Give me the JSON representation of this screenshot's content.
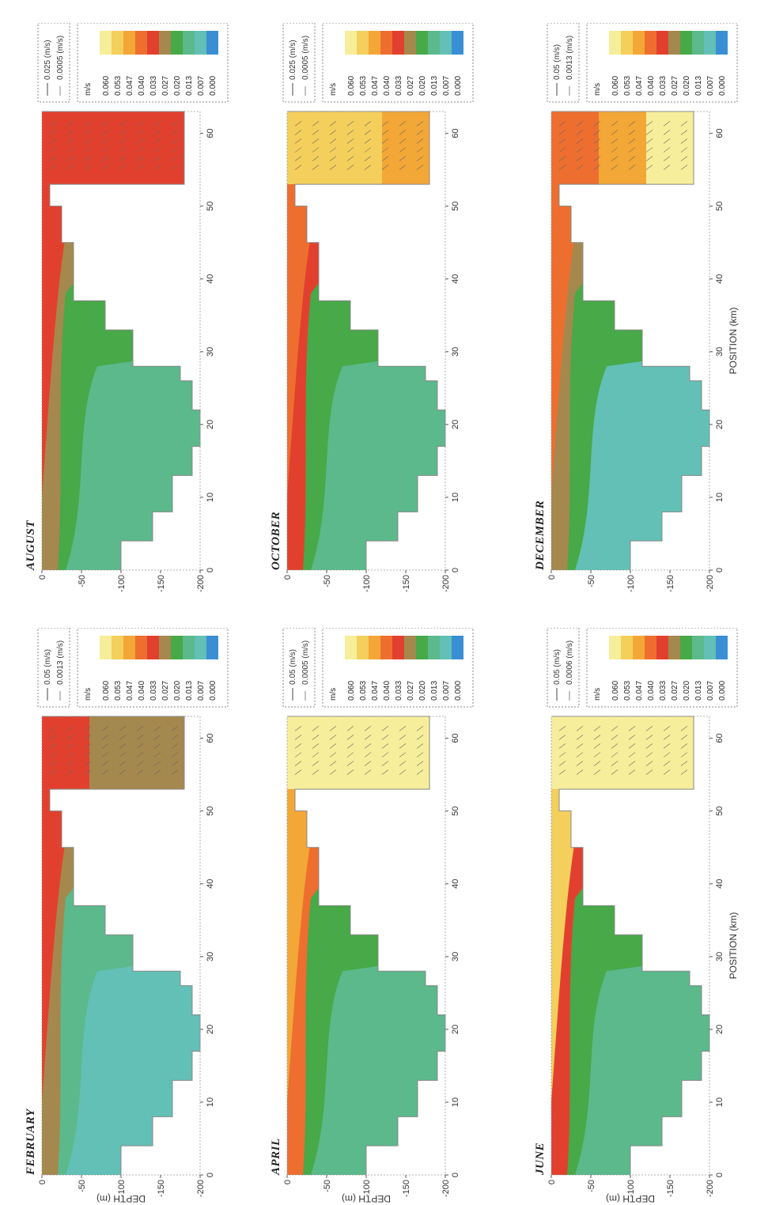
{
  "chart_data": [
    {
      "type": "heatmap",
      "title": "FEBRUARY",
      "ylabel": "DEPTH (m)",
      "xlabel": "",
      "xlim": [
        0,
        63
      ],
      "ylim": [
        -200,
        0
      ],
      "x_ticks": [
        "0",
        "10",
        "20",
        "30",
        "40",
        "50",
        "60"
      ],
      "y_ticks": [
        "0",
        "-50",
        "-100",
        "-150",
        "-200"
      ],
      "colorbar": {
        "unit": "m/s",
        "levels": [
          "0.060",
          "0.053",
          "0.047",
          "0.040",
          "0.033",
          "0.027",
          "0.020",
          "0.013",
          "0.007",
          "0.000"
        ]
      },
      "vector_scale": {
        "large": "0.05 (m/s)",
        "small": "0.0013 (m/s)"
      }
    },
    {
      "type": "heatmap",
      "title": "APRIL",
      "ylabel": "DEPTH (m)",
      "xlabel": "",
      "xlim": [
        0,
        63
      ],
      "ylim": [
        -200,
        0
      ],
      "x_ticks": [
        "0",
        "10",
        "20",
        "30",
        "40",
        "50",
        "60"
      ],
      "y_ticks": [
        "0",
        "-50",
        "-100",
        "-150",
        "-200"
      ],
      "colorbar": {
        "unit": "m/s",
        "levels": [
          "0.060",
          "0.053",
          "0.047",
          "0.040",
          "0.033",
          "0.027",
          "0.020",
          "0.013",
          "0.007",
          "0.000"
        ]
      },
      "vector_scale": {
        "large": "0.05 (m/s)",
        "small": "0.0005 (m/s)"
      }
    },
    {
      "type": "heatmap",
      "title": "JUNE",
      "ylabel": "DEPTH (m)",
      "xlabel": "POSITION (km)",
      "xlim": [
        0,
        63
      ],
      "ylim": [
        -200,
        0
      ],
      "x_ticks": [
        "0",
        "10",
        "20",
        "30",
        "40",
        "50",
        "60"
      ],
      "y_ticks": [
        "0",
        "-50",
        "-100",
        "-150",
        "-200"
      ],
      "colorbar": {
        "unit": "m/s",
        "levels": [
          "0.060",
          "0.053",
          "0.047",
          "0.040",
          "0.033",
          "0.027",
          "0.020",
          "0.013",
          "0.007",
          "0.000"
        ]
      },
      "vector_scale": {
        "large": "0.05 (m/s)",
        "small": "0.0006 (m/s)"
      }
    },
    {
      "type": "heatmap",
      "title": "AUGUST",
      "ylabel": "",
      "xlabel": "",
      "xlim": [
        0,
        63
      ],
      "ylim": [
        -200,
        0
      ],
      "x_ticks": [
        "0",
        "10",
        "20",
        "30",
        "40",
        "50",
        "60"
      ],
      "y_ticks": [
        "0",
        "-50",
        "-100",
        "-150",
        "-200"
      ],
      "colorbar": {
        "unit": "m/s",
        "levels": [
          "0.060",
          "0.053",
          "0.047",
          "0.040",
          "0.033",
          "0.027",
          "0.020",
          "0.013",
          "0.007",
          "0.000"
        ]
      },
      "vector_scale": {
        "large": "0.025 (m/s)",
        "small": "0.0005 (m/s)"
      }
    },
    {
      "type": "heatmap",
      "title": "OCTOBER",
      "ylabel": "",
      "xlabel": "",
      "xlim": [
        0,
        63
      ],
      "ylim": [
        -200,
        0
      ],
      "x_ticks": [
        "0",
        "10",
        "20",
        "30",
        "40",
        "50",
        "60"
      ],
      "y_ticks": [
        "0",
        "-50",
        "-100",
        "-150",
        "-200"
      ],
      "colorbar": {
        "unit": "m/s",
        "levels": [
          "0.060",
          "0.053",
          "0.047",
          "0.040",
          "0.033",
          "0.027",
          "0.020",
          "0.013",
          "0.007",
          "0.000"
        ]
      },
      "vector_scale": {
        "large": "0.025 (m/s)",
        "small": "0.0005 (m/s)"
      }
    },
    {
      "type": "heatmap",
      "title": "DECEMBER",
      "ylabel": "",
      "xlabel": "POSITION (km)",
      "xlim": [
        0,
        63
      ],
      "ylim": [
        -200,
        0
      ],
      "x_ticks": [
        "0",
        "10",
        "20",
        "30",
        "40",
        "50",
        "60"
      ],
      "y_ticks": [
        "0",
        "-50",
        "-100",
        "-150",
        "-200"
      ],
      "colorbar": {
        "unit": "m/s",
        "levels": [
          "0.060",
          "0.053",
          "0.047",
          "0.040",
          "0.033",
          "0.027",
          "0.020",
          "0.013",
          "0.007",
          "0.000"
        ]
      },
      "vector_scale": {
        "large": "0.05 (m/s)",
        "small": "0.0013 (m/s)"
      }
    }
  ],
  "colors": {
    "levels": [
      "#f6ee9a",
      "#f4cf5c",
      "#f3a736",
      "#ee6e2f",
      "#e2402e",
      "#a5884d",
      "#47a948",
      "#5bb98c",
      "#62c0b6",
      "#3a8fd4"
    ],
    "bathymetry": "#888888",
    "frame": "#999999"
  }
}
